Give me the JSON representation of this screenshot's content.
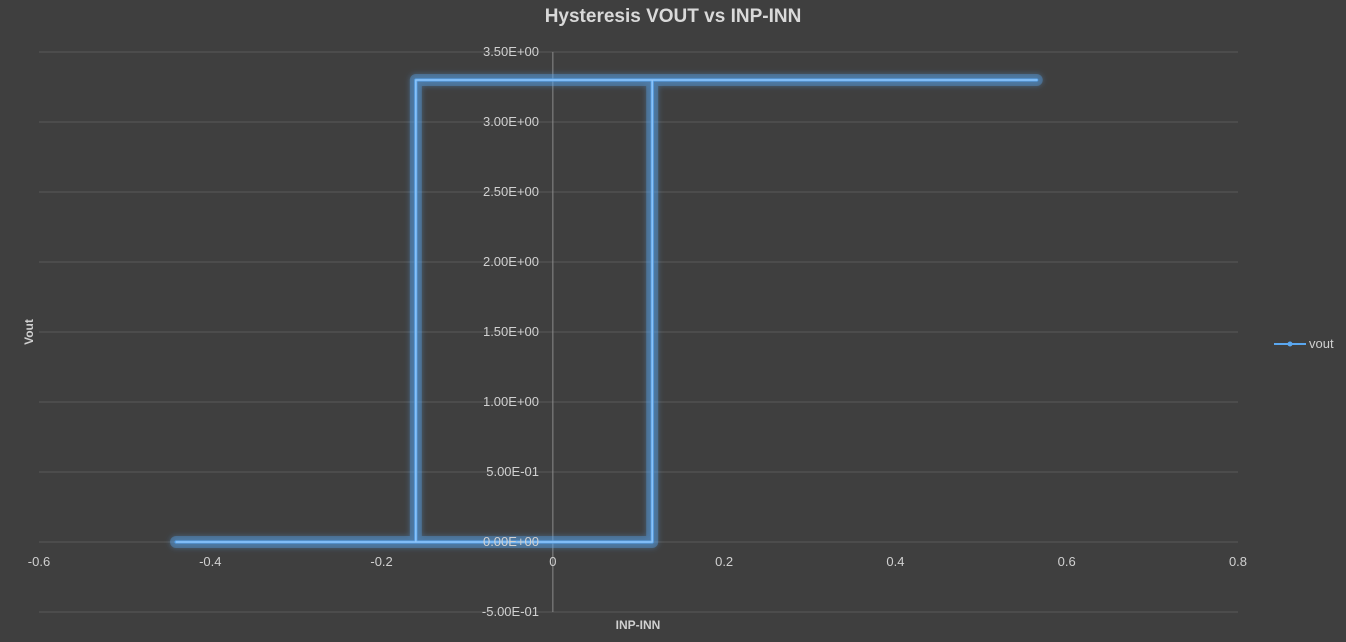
{
  "chart_data": {
    "type": "scatter",
    "title": "Hysteresis VOUT vs INP-INN",
    "xlabel": "INP-INN",
    "ylabel": "Vout",
    "xlim": [
      -0.6,
      0.8
    ],
    "ylim": [
      -0.5,
      3.5
    ],
    "x_ticks": [
      "-0.6",
      "-0.4",
      "-0.2",
      "0",
      "0.2",
      "0.4",
      "0.6",
      "0.8"
    ],
    "x_tick_values": [
      -0.6,
      -0.4,
      -0.2,
      0,
      0.2,
      0.4,
      0.6,
      0.8
    ],
    "y_ticks": [
      "-5.00E-01",
      "0.00E+00",
      "5.00E-01",
      "1.00E+00",
      "1.50E+00",
      "2.00E+00",
      "2.50E+00",
      "3.00E+00",
      "3.50E+00"
    ],
    "y_tick_values": [
      -0.5,
      0,
      0.5,
      1.0,
      1.5,
      2.0,
      2.5,
      3.0,
      3.5
    ],
    "grid": true,
    "legend_position": "right",
    "series": [
      {
        "name": "vout",
        "color": "#5aa7f0",
        "x": [
          -0.44,
          -0.16,
          0.116,
          0.116,
          0.565,
          -0.16,
          -0.16,
          -0.44
        ],
        "y": [
          0.0,
          0.0,
          0.0,
          3.3,
          3.3,
          3.3,
          0.0,
          0.0
        ]
      }
    ]
  }
}
